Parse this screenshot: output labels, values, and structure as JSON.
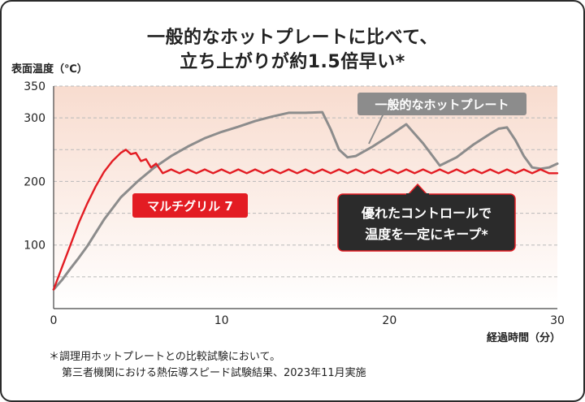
{
  "title_line1": "一般的なホットプレートに比べて、",
  "title_line2": "立ち上がりが約1.5倍早い*",
  "ylabel": "表面温度（℃）",
  "xlabel": "経過時間（分）",
  "footnote_line1": "＊調理用ホットプレートとの比較試験において。",
  "footnote_line2": "第三者機関における熱伝導スピード試験結果、2023年11月実施",
  "callouts": {
    "generic_label": "一般的なホットプレート",
    "multigrill_label": "マルチグリル 7",
    "control_line1": "優れたコントロールで",
    "control_line2": "温度を一定にキープ*"
  },
  "colors": {
    "generic": "#8c8c8c",
    "multigrill": "#e31c23",
    "callout_dark": "#2b2b2b",
    "plot_bg_top": "#f8dccf",
    "plot_bg_bottom": "#ffffff"
  },
  "chart_data": {
    "type": "line",
    "title": "一般的なホットプレートに比べて、立ち上がりが約1.5倍早い*",
    "xlabel": "経過時間（分）",
    "ylabel": "表面温度（℃）",
    "xlim": [
      0,
      30
    ],
    "ylim": [
      0,
      350
    ],
    "xticks": [
      0,
      10,
      20,
      30
    ],
    "yticks": [
      100,
      200,
      300,
      350
    ],
    "grid": "horizontal dashed",
    "series": [
      {
        "name": "一般的なホットプレート",
        "color": "#8c8c8c",
        "x": [
          0,
          0.5,
          1,
          1.5,
          2,
          3,
          4,
          5,
          6,
          7,
          8,
          9,
          10,
          11,
          12,
          13,
          14,
          15,
          16,
          16.5,
          17,
          17.5,
          18,
          19,
          20,
          21,
          22,
          23,
          24,
          25,
          26,
          26.5,
          27,
          27.5,
          28,
          28.5,
          29,
          29.5,
          30
        ],
        "values": [
          30,
          45,
          63,
          80,
          98,
          140,
          175,
          200,
          222,
          240,
          255,
          268,
          278,
          286,
          295,
          302,
          308,
          308,
          309,
          282,
          250,
          238,
          240,
          255,
          272,
          290,
          260,
          225,
          238,
          258,
          275,
          283,
          285,
          265,
          240,
          222,
          220,
          222,
          228
        ],
        "label": "一般的なホットプレート"
      },
      {
        "name": "マルチグリル 7",
        "color": "#e31c23",
        "x": [
          0,
          0.5,
          1,
          1.5,
          2,
          2.5,
          3,
          3.5,
          4,
          4.3,
          4.6,
          4.9,
          5.2,
          5.5,
          5.8,
          6.1,
          6.5,
          7,
          7.5,
          8,
          8.5,
          9,
          9.5,
          10,
          10.5,
          11,
          11.5,
          12,
          12.5,
          13,
          13.5,
          14,
          14.5,
          15,
          15.5,
          16,
          16.5,
          17,
          17.5,
          18,
          18.5,
          19,
          19.5,
          20,
          20.5,
          21,
          21.5,
          22,
          22.5,
          23,
          23.5,
          24,
          24.5,
          25,
          25.5,
          26,
          26.5,
          27,
          27.5,
          28,
          28.5,
          29,
          29.5,
          30
        ],
        "values": [
          30,
          65,
          100,
          135,
          165,
          192,
          215,
          232,
          245,
          250,
          243,
          245,
          232,
          235,
          222,
          228,
          213,
          219,
          213,
          219,
          213,
          219,
          213,
          219,
          213,
          219,
          213,
          219,
          213,
          219,
          213,
          219,
          213,
          219,
          213,
          219,
          213,
          219,
          213,
          219,
          213,
          219,
          213,
          219,
          213,
          219,
          213,
          219,
          213,
          219,
          213,
          219,
          213,
          219,
          213,
          219,
          213,
          219,
          213,
          219,
          213,
          219,
          213,
          213
        ],
        "label": "マルチグリル 7"
      }
    ]
  }
}
